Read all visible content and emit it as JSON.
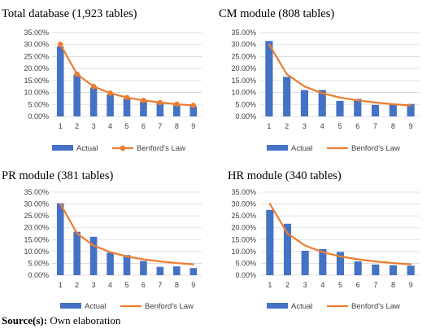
{
  "chart_data": [
    {
      "type": "bar",
      "title": "Total database (1,923 tables)",
      "categories": [
        "1",
        "2",
        "3",
        "4",
        "5",
        "6",
        "7",
        "8",
        "9"
      ],
      "series": [
        {
          "name": "Actual",
          "type": "bar",
          "color": "#4472C4",
          "values": [
            0.292,
            0.175,
            0.12,
            0.092,
            0.075,
            0.063,
            0.055,
            0.047,
            0.043
          ]
        },
        {
          "name": "Benford's Law",
          "type": "line",
          "markers": true,
          "color": "#ED7D31",
          "values": [
            0.301,
            0.176,
            0.125,
            0.097,
            0.079,
            0.067,
            0.058,
            0.051,
            0.046
          ]
        }
      ],
      "ylim": [
        0,
        0.35
      ],
      "yticks": [
        "0.00%",
        "5.00%",
        "10.00%",
        "15.00%",
        "20.00%",
        "25.00%",
        "30.00%",
        "35.00%"
      ],
      "grid": true,
      "legend": "bottom"
    },
    {
      "type": "bar",
      "title": "CM module (808 tables)",
      "categories": [
        "1",
        "2",
        "3",
        "4",
        "5",
        "6",
        "7",
        "8",
        "9"
      ],
      "series": [
        {
          "name": "Actual",
          "type": "bar",
          "color": "#4472C4",
          "values": [
            0.315,
            0.165,
            0.11,
            0.11,
            0.065,
            0.073,
            0.048,
            0.05,
            0.052
          ]
        },
        {
          "name": "Benford's Law",
          "type": "line",
          "markers": false,
          "color": "#ED7D31",
          "values": [
            0.301,
            0.176,
            0.125,
            0.097,
            0.079,
            0.067,
            0.058,
            0.051,
            0.046
          ]
        }
      ],
      "ylim": [
        0,
        0.35
      ],
      "yticks": [
        "0.00%",
        "5.00%",
        "10.00%",
        "15.00%",
        "20.00%",
        "25.00%",
        "30.00%",
        "35.00%"
      ],
      "grid": true,
      "legend": "bottom"
    },
    {
      "type": "bar",
      "title": "PR module (381 tables)",
      "categories": [
        "1",
        "2",
        "3",
        "4",
        "5",
        "6",
        "7",
        "8",
        "9"
      ],
      "series": [
        {
          "name": "Actual",
          "type": "bar",
          "color": "#4472C4",
          "values": [
            0.303,
            0.183,
            0.162,
            0.095,
            0.085,
            0.06,
            0.035,
            0.037,
            0.03
          ]
        },
        {
          "name": "Benford's Law",
          "type": "line",
          "markers": false,
          "color": "#ED7D31",
          "values": [
            0.301,
            0.176,
            0.125,
            0.097,
            0.079,
            0.067,
            0.058,
            0.051,
            0.046
          ]
        }
      ],
      "ylim": [
        0,
        0.35
      ],
      "yticks": [
        "0.00%",
        "5.00%",
        "10.00%",
        "15.00%",
        "20.00%",
        "25.00%",
        "30.00%",
        "35.00%"
      ],
      "grid": true,
      "legend": "bottom"
    },
    {
      "type": "bar",
      "title": "HR module (340 tables)",
      "categories": [
        "1",
        "2",
        "3",
        "4",
        "5",
        "6",
        "7",
        "8",
        "9"
      ],
      "series": [
        {
          "name": "Actual",
          "type": "bar",
          "color": "#4472C4",
          "values": [
            0.275,
            0.217,
            0.103,
            0.11,
            0.098,
            0.058,
            0.045,
            0.042,
            0.04
          ]
        },
        {
          "name": "Benford's Law",
          "type": "line",
          "markers": false,
          "color": "#ED7D31",
          "values": [
            0.301,
            0.176,
            0.125,
            0.097,
            0.079,
            0.067,
            0.058,
            0.051,
            0.046
          ]
        }
      ],
      "ylim": [
        0,
        0.35
      ],
      "yticks": [
        "0.00%",
        "5.00%",
        "10.00%",
        "15.00%",
        "20.00%",
        "25.00%",
        "30.00%",
        "35.00%"
      ],
      "grid": true,
      "legend": "bottom"
    }
  ],
  "source_note": {
    "label": "Source(s):",
    "text": " Own elaboration"
  },
  "colors": {
    "grid": "#D9D9D9",
    "tick_text": "#404040"
  }
}
